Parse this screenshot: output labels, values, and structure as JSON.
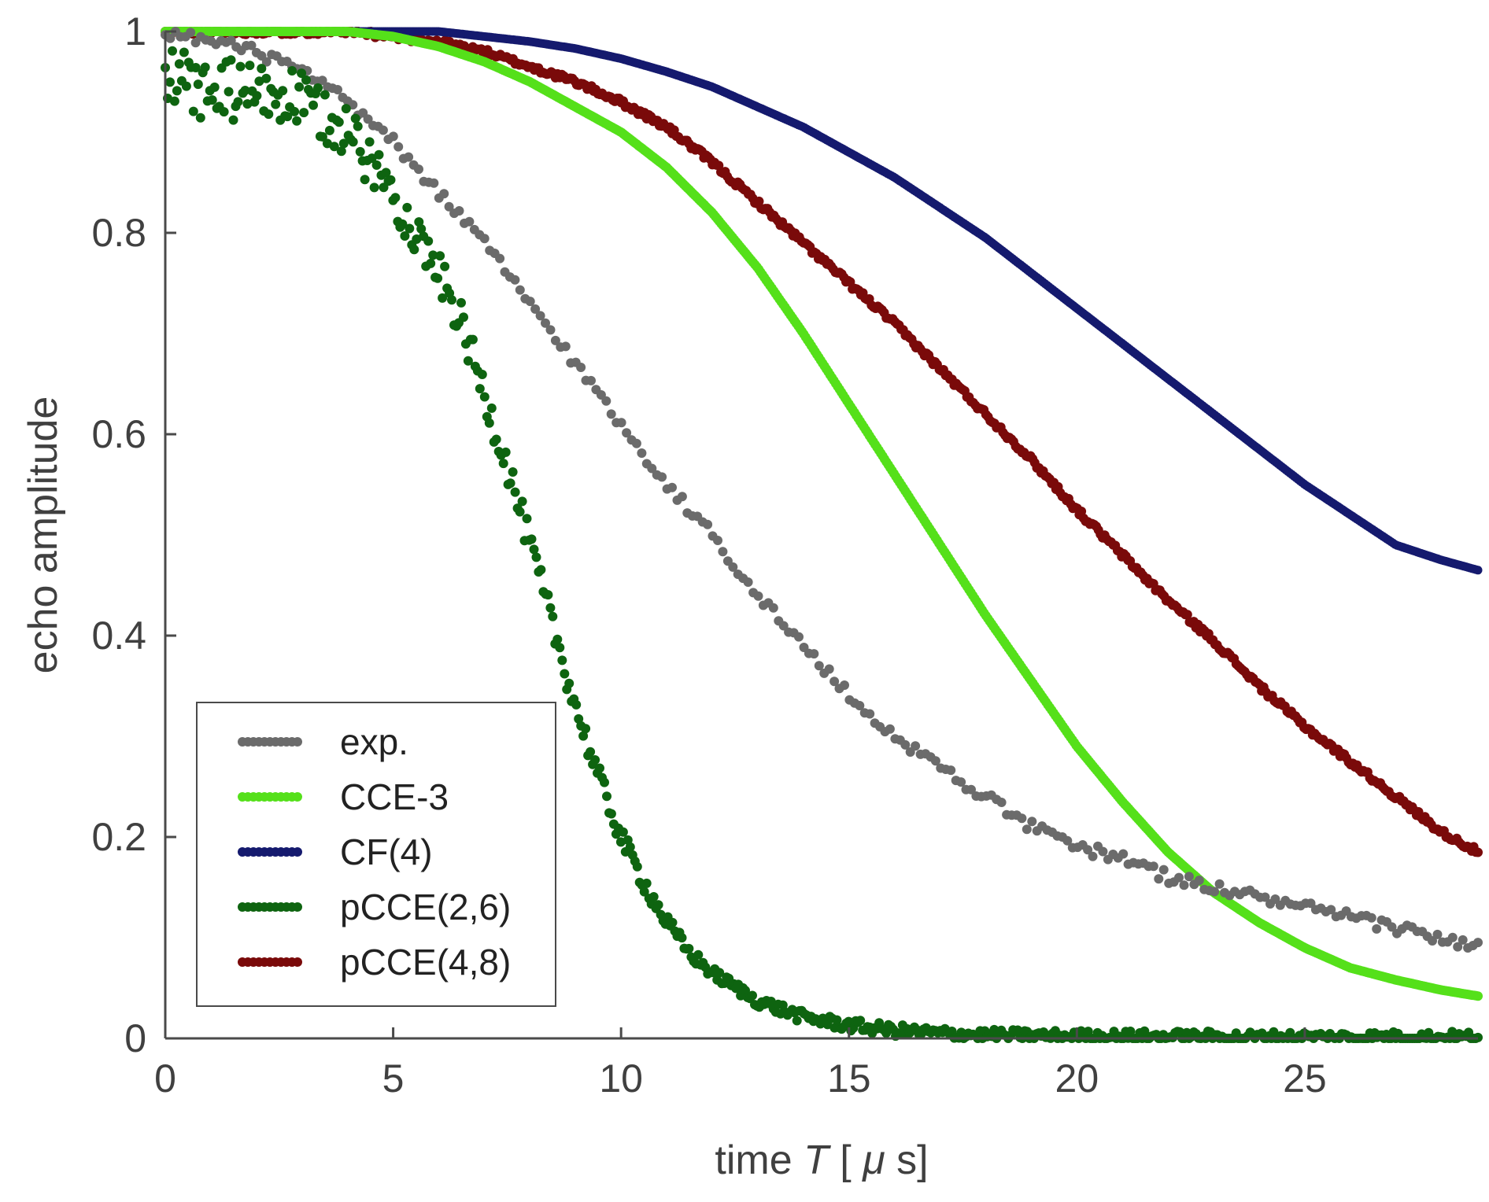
{
  "chart_data": {
    "type": "scatter",
    "title": "",
    "xlabel": "time",
    "xlabel_var": "T",
    "xlabel_unit_open": "[",
    "xlabel_unit_mu": "μ",
    "xlabel_unit_rest": "s]",
    "ylabel": "echo amplitude",
    "xlim": [
      0,
      28.8
    ],
    "ylim": [
      0,
      1
    ],
    "x_ticks": [
      0,
      5,
      10,
      15,
      20,
      25
    ],
    "x_tick_labels": [
      "0",
      "5",
      "10",
      "15",
      "20",
      "25"
    ],
    "y_ticks": [
      0,
      0.2,
      0.4,
      0.6,
      0.8,
      1
    ],
    "y_tick_labels": [
      "0",
      "0.2",
      "0.4",
      "0.6",
      "0.8",
      "1"
    ],
    "grid": false,
    "legend_position": "bottom-left",
    "series": [
      {
        "name": "exp.",
        "color": "#6b6b6b",
        "marker": "dot",
        "x": [
          0,
          1,
          2,
          3,
          4,
          5,
          6,
          7,
          8,
          9,
          10,
          11,
          12,
          13,
          14,
          15,
          16,
          17,
          18,
          19,
          20,
          21,
          22,
          23,
          24,
          25,
          26,
          27,
          28,
          28.8
        ],
        "values": [
          1.0,
          0.99,
          0.98,
          0.96,
          0.93,
          0.89,
          0.84,
          0.79,
          0.73,
          0.67,
          0.61,
          0.55,
          0.5,
          0.44,
          0.39,
          0.34,
          0.3,
          0.27,
          0.24,
          0.21,
          0.19,
          0.18,
          0.16,
          0.15,
          0.14,
          0.13,
          0.12,
          0.11,
          0.1,
          0.09
        ]
      },
      {
        "name": "CCE-3",
        "color": "#55e01a",
        "marker": "dot",
        "x": [
          0,
          1,
          2,
          3,
          4,
          5,
          6,
          7,
          8,
          9,
          10,
          11,
          12,
          13,
          14,
          15,
          16,
          17,
          18,
          19,
          20,
          21,
          22,
          23,
          24,
          25,
          26,
          27,
          28,
          28.8
        ],
        "values": [
          1.0,
          1.0,
          1.0,
          1.0,
          1.0,
          0.995,
          0.985,
          0.97,
          0.95,
          0.925,
          0.9,
          0.865,
          0.82,
          0.765,
          0.7,
          0.63,
          0.56,
          0.49,
          0.42,
          0.355,
          0.29,
          0.235,
          0.185,
          0.145,
          0.115,
          0.09,
          0.07,
          0.058,
          0.048,
          0.042
        ]
      },
      {
        "name": "CF(4)",
        "color": "#151a6e",
        "marker": "dot",
        "x": [
          0,
          2,
          4,
          6,
          7,
          8,
          9,
          10,
          11,
          12,
          13,
          14,
          15,
          16,
          17,
          18,
          19,
          20,
          21,
          22,
          23,
          24,
          25,
          26,
          27,
          28,
          28.8
        ],
        "values": [
          1.0,
          1.0,
          1.0,
          1.0,
          0.995,
          0.99,
          0.983,
          0.973,
          0.96,
          0.945,
          0.925,
          0.905,
          0.88,
          0.855,
          0.825,
          0.795,
          0.76,
          0.725,
          0.69,
          0.655,
          0.62,
          0.585,
          0.55,
          0.52,
          0.49,
          0.475,
          0.465
        ]
      },
      {
        "name": "pCCE(2,6)",
        "color": "#0e6410",
        "marker": "dot",
        "x": [
          0,
          1,
          2,
          3,
          4,
          5,
          5.5,
          6,
          6.5,
          7,
          7.5,
          8,
          8.5,
          9,
          9.5,
          10,
          10.5,
          11,
          11.5,
          12,
          13,
          14,
          15,
          16,
          17,
          18,
          20,
          24,
          28.8
        ],
        "values": [
          0.95,
          0.94,
          0.94,
          0.93,
          0.9,
          0.84,
          0.8,
          0.76,
          0.71,
          0.64,
          0.57,
          0.49,
          0.41,
          0.33,
          0.26,
          0.2,
          0.155,
          0.115,
          0.085,
          0.065,
          0.037,
          0.021,
          0.013,
          0.008,
          0.005,
          0.003,
          0.002,
          0.001,
          0.001
        ]
      },
      {
        "name": "pCCE(4,8)",
        "color": "#7a0a0a",
        "marker": "dot",
        "x": [
          0,
          2,
          4,
          5,
          6,
          7,
          8,
          9,
          10,
          11,
          12,
          13,
          14,
          15,
          16,
          17,
          18,
          19,
          20,
          21,
          22,
          23,
          24,
          25,
          26,
          27,
          28,
          28.8
        ],
        "values": [
          1.0,
          1.0,
          1.0,
          0.995,
          0.99,
          0.98,
          0.965,
          0.95,
          0.93,
          0.905,
          0.87,
          0.83,
          0.79,
          0.75,
          0.71,
          0.665,
          0.62,
          0.575,
          0.525,
          0.48,
          0.435,
          0.395,
          0.35,
          0.31,
          0.275,
          0.24,
          0.205,
          0.185
        ]
      }
    ]
  }
}
